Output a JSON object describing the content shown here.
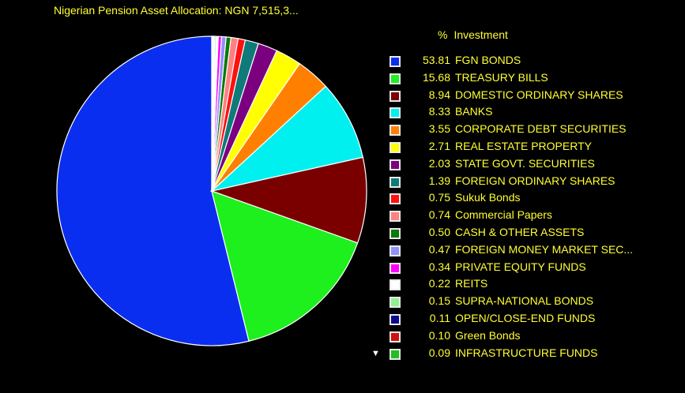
{
  "title": "Nigerian Pension Asset Allocation: NGN 7,515,3...",
  "legend": {
    "header_pct": "%",
    "header_label": "Investment",
    "scroll_indicator": "▼"
  },
  "chart_data": {
    "type": "pie",
    "title": "Nigerian Pension Asset Allocation: NGN 7,515,3...",
    "slices": [
      {
        "label": "FGN BONDS",
        "value": 53.81,
        "value_text": "53.81",
        "color": "#0a2ef0"
      },
      {
        "label": "TREASURY BILLS",
        "value": 15.68,
        "value_text": "15.68",
        "color": "#1ef01e"
      },
      {
        "label": "DOMESTIC ORDINARY SHARES",
        "value": 8.94,
        "value_text": "8.94",
        "color": "#7a0000"
      },
      {
        "label": "BANKS",
        "value": 8.33,
        "value_text": "8.33",
        "color": "#00f0f0"
      },
      {
        "label": "CORPORATE DEBT SECURITIES",
        "value": 3.55,
        "value_text": "3.55",
        "color": "#ff8000"
      },
      {
        "label": "REAL ESTATE PROPERTY",
        "value": 2.71,
        "value_text": "2.71",
        "color": "#ffff00"
      },
      {
        "label": "STATE GOVT. SECURITIES",
        "value": 2.03,
        "value_text": "2.03",
        "color": "#7a0080"
      },
      {
        "label": "FOREIGN ORDINARY SHARES",
        "value": 1.39,
        "value_text": "1.39",
        "color": "#0f7a7a"
      },
      {
        "label": "Sukuk Bonds",
        "value": 0.75,
        "value_text": "0.75",
        "color": "#ff1010"
      },
      {
        "label": "Commercial Papers",
        "value": 0.74,
        "value_text": "0.74",
        "color": "#ff8080"
      },
      {
        "label": "CASH & OTHER ASSETS",
        "value": 0.5,
        "value_text": "0.50",
        "color": "#0a7a0a"
      },
      {
        "label": "FOREIGN MONEY MARKET SEC...",
        "value": 0.47,
        "value_text": "0.47",
        "color": "#9090ff"
      },
      {
        "label": "PRIVATE EQUITY FUNDS",
        "value": 0.34,
        "value_text": "0.34",
        "color": "#ff00ff"
      },
      {
        "label": "REITS",
        "value": 0.22,
        "value_text": "0.22",
        "color": "#ffffff"
      },
      {
        "label": "SUPRA-NATIONAL BONDS",
        "value": 0.15,
        "value_text": "0.15",
        "color": "#90f090"
      },
      {
        "label": "OPEN/CLOSE-END FUNDS",
        "value": 0.11,
        "value_text": "0.11",
        "color": "#0a0a90"
      },
      {
        "label": "Green Bonds",
        "value": 0.1,
        "value_text": "0.10",
        "color": "#d01010"
      },
      {
        "label": "INFRASTRUCTURE FUNDS",
        "value": 0.09,
        "value_text": "0.09",
        "color": "#20c020"
      }
    ]
  }
}
